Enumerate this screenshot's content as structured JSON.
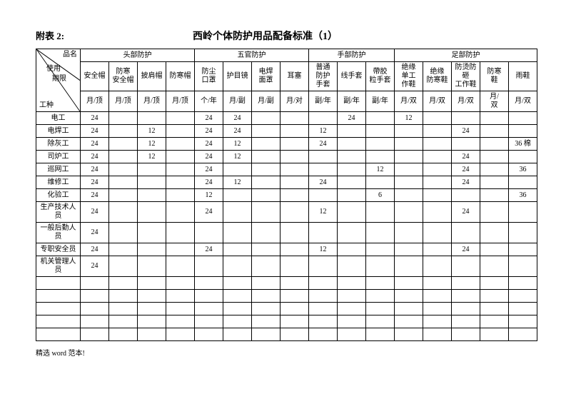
{
  "attach_label": "附表 2:",
  "title": "西岭个体防护用品配备标准（1）",
  "diag": {
    "top": "品名",
    "mid1": "使用",
    "mid2": "期限",
    "bottom": "工种"
  },
  "groups": [
    "头部防护",
    "五官防护",
    "手部防护",
    "足部防护"
  ],
  "headers": [
    "安全帽",
    "防寒\n安全帽",
    "披肩帽",
    "防寒帽",
    "防尘\n口罩",
    "护目镜",
    "电焊\n面罩",
    "耳塞",
    "普通\n防护\n手套",
    "线手套",
    "帶胶\n粒手套",
    "绝缘\n单工\n作鞋",
    "绝缘\n防寒鞋",
    "防烫防砸\n工作鞋",
    "防寒\n鞋",
    "雨鞋"
  ],
  "units": [
    "月/顶",
    "月/顶",
    "月/顶",
    "月/顶",
    "个/年",
    "月/副",
    "月/副",
    "月/对",
    "副/年",
    "副/年",
    "副/年",
    "月/双",
    "月/双",
    "月/双",
    "月/\n双",
    "月/双"
  ],
  "rows": [
    {
      "label": "电工",
      "cells": [
        "24",
        "",
        "",
        "",
        "24",
        "24",
        "",
        "",
        "",
        "24",
        "",
        "12",
        "",
        "",
        "",
        ""
      ]
    },
    {
      "label": "电焊工",
      "cells": [
        "24",
        "",
        "12",
        "",
        "24",
        "24",
        "",
        "",
        "12",
        "",
        "",
        "",
        "",
        "24",
        "",
        ""
      ]
    },
    {
      "label": "除灰工",
      "cells": [
        "24",
        "",
        "12",
        "",
        "24",
        "12",
        "",
        "",
        "24",
        "",
        "",
        "",
        "",
        "",
        "",
        "36 棉"
      ]
    },
    {
      "label": "司炉工",
      "cells": [
        "24",
        "",
        "12",
        "",
        "24",
        "12",
        "",
        "",
        "",
        "",
        "",
        "",
        "",
        "24",
        "",
        ""
      ]
    },
    {
      "label": "巡网工",
      "cells": [
        "24",
        "",
        "",
        "",
        "24",
        "",
        "",
        "",
        "",
        "",
        "12",
        "",
        "",
        "24",
        "",
        "36"
      ]
    },
    {
      "label": "维修工",
      "cells": [
        "24",
        "",
        "",
        "",
        "24",
        "12",
        "",
        "",
        "24",
        "",
        "",
        "",
        "",
        "24",
        "",
        ""
      ]
    },
    {
      "label": "化验工",
      "cells": [
        "24",
        "",
        "",
        "",
        "12",
        "",
        "",
        "",
        "",
        "",
        "6",
        "",
        "",
        "",
        "",
        "36"
      ]
    },
    {
      "label": "生产技术人员",
      "cells": [
        "24",
        "",
        "",
        "",
        "24",
        "",
        "",
        "",
        "12",
        "",
        "",
        "",
        "",
        "24",
        "",
        ""
      ]
    },
    {
      "label": "一般后勤人员",
      "cells": [
        "24",
        "",
        "",
        "",
        "",
        "",
        "",
        "",
        "",
        "",
        "",
        "",
        "",
        "",
        "",
        ""
      ]
    },
    {
      "label": "专职安全员",
      "cells": [
        "24",
        "",
        "",
        "",
        "24",
        "",
        "",
        "",
        "12",
        "",
        "",
        "",
        "",
        "24",
        "",
        ""
      ]
    },
    {
      "label": "机关管理人员",
      "cells": [
        "24",
        "",
        "",
        "",
        "",
        "",
        "",
        "",
        "",
        "",
        "",
        "",
        "",
        "",
        "",
        ""
      ]
    },
    {
      "label": "",
      "cells": [
        "",
        "",
        "",
        "",
        "",
        "",
        "",
        "",
        "",
        "",
        "",
        "",
        "",
        "",
        "",
        ""
      ]
    },
    {
      "label": "",
      "cells": [
        "",
        "",
        "",
        "",
        "",
        "",
        "",
        "",
        "",
        "",
        "",
        "",
        "",
        "",
        "",
        ""
      ]
    },
    {
      "label": "",
      "cells": [
        "",
        "",
        "",
        "",
        "",
        "",
        "",
        "",
        "",
        "",
        "",
        "",
        "",
        "",
        "",
        ""
      ]
    },
    {
      "label": "",
      "cells": [
        "",
        "",
        "",
        "",
        "",
        "",
        "",
        "",
        "",
        "",
        "",
        "",
        "",
        "",
        "",
        ""
      ]
    },
    {
      "label": "",
      "cells": [
        "",
        "",
        "",
        "",
        "",
        "",
        "",
        "",
        "",
        "",
        "",
        "",
        "",
        "",
        "",
        ""
      ]
    }
  ],
  "footer": "精选 word 范本!"
}
